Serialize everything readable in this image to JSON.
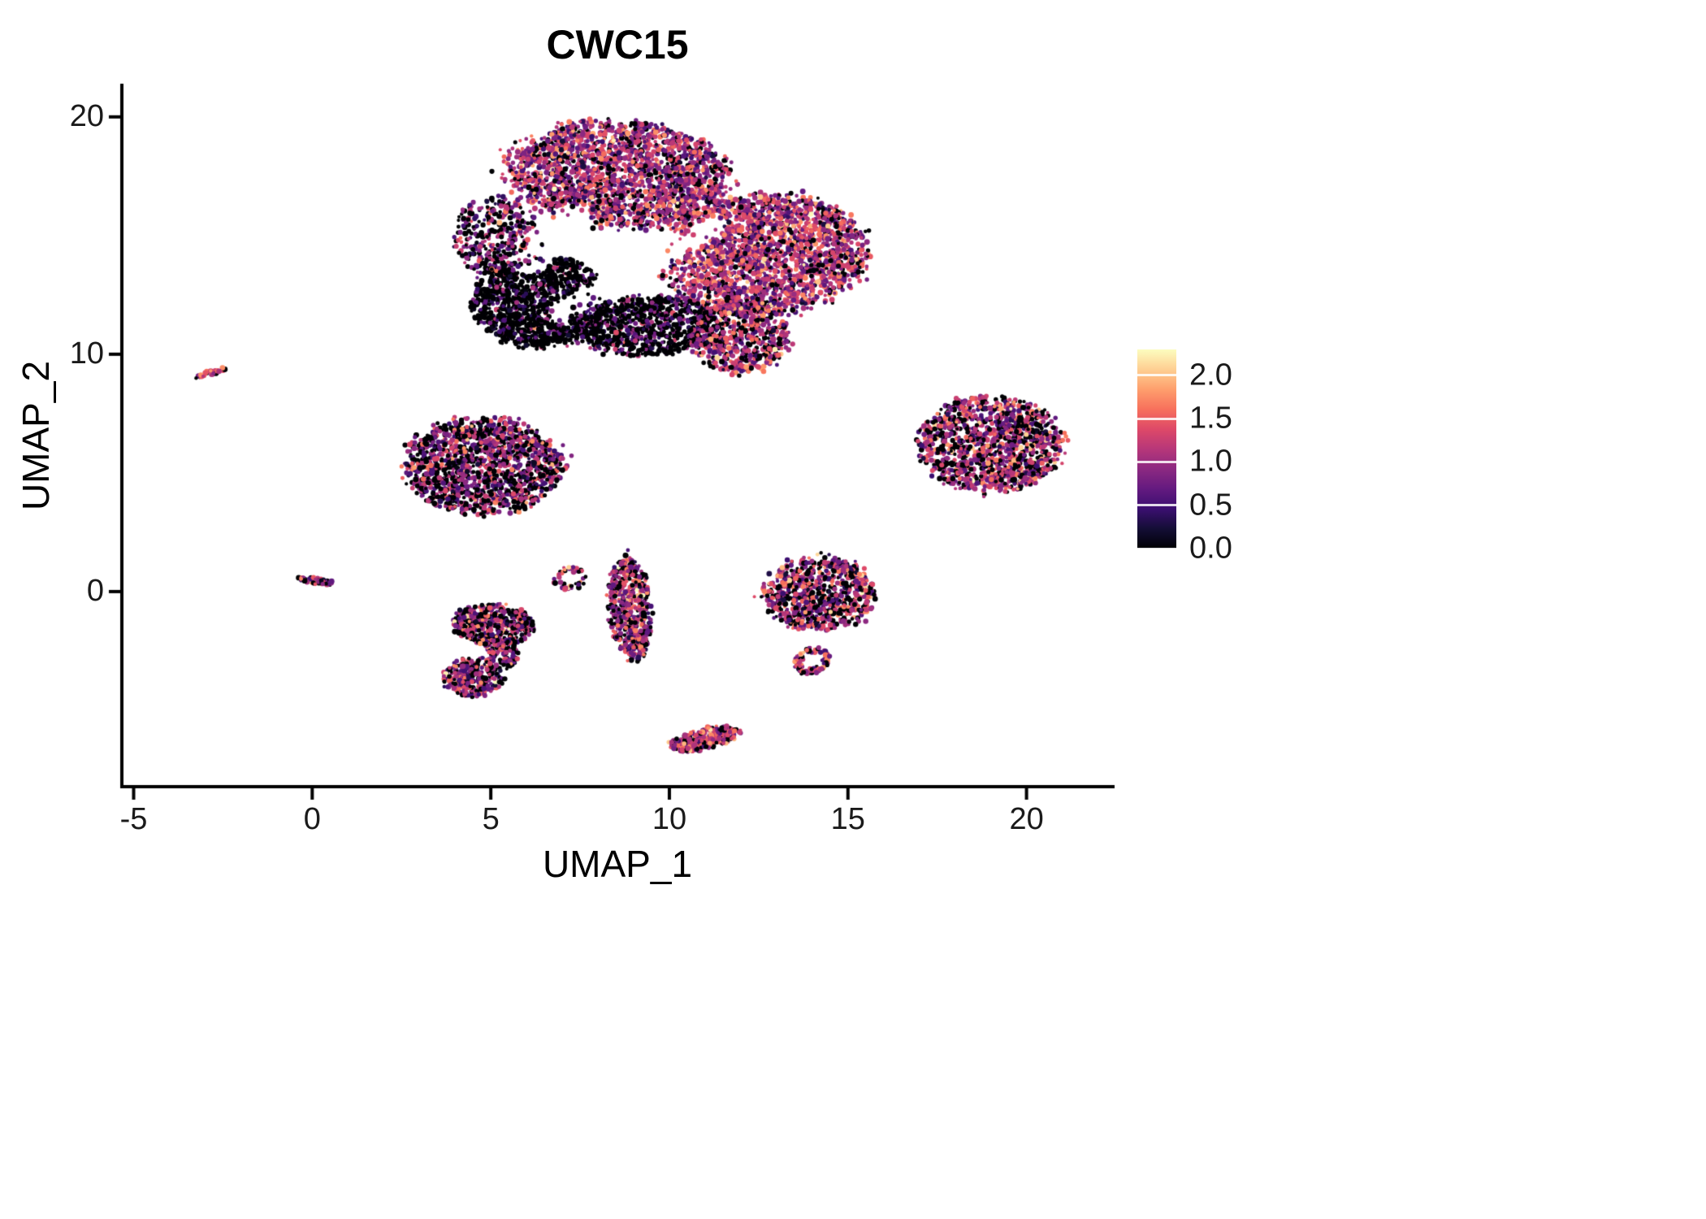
{
  "title": "CWC15",
  "chart_data": {
    "type": "scatter",
    "title": "CWC15",
    "xlabel": "UMAP_1",
    "ylabel": "UMAP_2",
    "xlim": [
      -5.33,
      22.42
    ],
    "ylim": [
      -8.22,
      21.33
    ],
    "grid": false,
    "legend_position": "right",
    "x_ticks": [
      {
        "v": -5,
        "label": "-5"
      },
      {
        "v": 0,
        "label": "0"
      },
      {
        "v": 5,
        "label": "5"
      },
      {
        "v": 10,
        "label": "10"
      },
      {
        "v": 15,
        "label": "15"
      },
      {
        "v": 20,
        "label": "20"
      }
    ],
    "y_ticks": [
      {
        "v": 0,
        "label": "0"
      },
      {
        "v": 10,
        "label": "10"
      },
      {
        "v": 20,
        "label": "20"
      }
    ],
    "color_scale": {
      "name": "magma",
      "min": 0,
      "max": 2.3,
      "ticks": [
        {
          "v": 2.0,
          "label": "2.0"
        },
        {
          "v": 1.5,
          "label": "1.5"
        },
        {
          "v": 1.0,
          "label": "1.0"
        },
        {
          "v": 0.5,
          "label": "0.5"
        },
        {
          "v": 0.0,
          "label": "0.0"
        }
      ],
      "anchors": [
        [
          0.0,
          "#000004"
        ],
        [
          0.1,
          "#140e36"
        ],
        [
          0.2,
          "#3b0f70"
        ],
        [
          0.3,
          "#641a80"
        ],
        [
          0.4,
          "#8c2981"
        ],
        [
          0.5,
          "#b73779"
        ],
        [
          0.6,
          "#de4968"
        ],
        [
          0.7,
          "#f7705c"
        ],
        [
          0.8,
          "#fe9f6d"
        ],
        [
          0.9,
          "#fecf92"
        ],
        [
          1.0,
          "#fcfdbf"
        ]
      ]
    },
    "gaps": [
      {
        "x1": 7.0,
        "y1": 11.8,
        "x2": 11.2,
        "y2": 15.4,
        "w": 0.42
      },
      {
        "x1": 6.1,
        "y1": 13.8,
        "x2": 7.3,
        "y2": 15.9,
        "w": 0.5
      }
    ],
    "clusters": [
      {
        "name": "main-upper",
        "cx": 8.6,
        "cy": 17.6,
        "rx": 3.1,
        "ry": 2.25,
        "rot": -8,
        "n": 2200,
        "zero": 0.17,
        "mean": 1.05,
        "sd": 0.42,
        "gap": true
      },
      {
        "name": "main-right",
        "cx": 12.7,
        "cy": 14.2,
        "rx": 2.9,
        "ry": 2.5,
        "rot": 15,
        "n": 2200,
        "zero": 0.14,
        "mean": 1.1,
        "sd": 0.42,
        "gap": true
      },
      {
        "name": "main-left-edge",
        "cx": 5.2,
        "cy": 14.9,
        "rx": 1.25,
        "ry": 1.7,
        "rot": 10,
        "n": 400,
        "zero": 0.35,
        "mean": 0.9,
        "sd": 0.4,
        "gap": true
      },
      {
        "name": "main-dark-left",
        "cx": 6.4,
        "cy": 12.2,
        "rx": 1.9,
        "ry": 1.9,
        "rot": 0,
        "n": 1300,
        "zero": 0.72,
        "mean": 0.6,
        "sd": 0.35,
        "gap": true
      },
      {
        "name": "main-dark-bottom",
        "cx": 9.4,
        "cy": 11.2,
        "rx": 2.0,
        "ry": 1.25,
        "rot": 5,
        "n": 800,
        "zero": 0.66,
        "mean": 0.65,
        "sd": 0.35,
        "gap": true
      },
      {
        "name": "main-lower-right",
        "cx": 12.0,
        "cy": 10.7,
        "rx": 1.4,
        "ry": 1.5,
        "rot": 0,
        "n": 650,
        "zero": 0.22,
        "mean": 1.1,
        "sd": 0.42
      },
      {
        "name": "streak-upper-left",
        "cx": -2.85,
        "cy": 9.2,
        "rx": 0.45,
        "ry": 0.12,
        "rot": 25,
        "n": 28,
        "zero": 0.1,
        "mean": 1.4,
        "sd": 0.3
      },
      {
        "name": "mid-left-blob",
        "cx": 4.8,
        "cy": 5.3,
        "rx": 2.2,
        "ry": 2.05,
        "rot": -10,
        "n": 1500,
        "zero": 0.38,
        "mean": 0.95,
        "sd": 0.42
      },
      {
        "name": "right-blob",
        "cx": 19.0,
        "cy": 6.2,
        "rx": 2.0,
        "ry": 2.05,
        "rot": 20,
        "n": 1300,
        "zero": 0.28,
        "mean": 1.1,
        "sd": 0.45
      },
      {
        "name": "tiny-left-streak",
        "cx": 0.1,
        "cy": 0.45,
        "rx": 0.5,
        "ry": 0.13,
        "rot": -12,
        "n": 55,
        "zero": 0.25,
        "mean": 1.0,
        "sd": 0.4
      },
      {
        "name": "small-arc",
        "cx": 7.2,
        "cy": 0.55,
        "rx": 0.45,
        "ry": 0.5,
        "rot": 0,
        "n": 45,
        "zero": 0.2,
        "mean": 1.2,
        "sd": 0.4,
        "ring": true
      },
      {
        "name": "vertical-blob",
        "cx": 8.9,
        "cy": -0.7,
        "rx": 0.62,
        "ry": 2.2,
        "rot": 3,
        "n": 550,
        "zero": 0.25,
        "mean": 1.1,
        "sd": 0.45
      },
      {
        "name": "lower-left-a",
        "cx": 5.1,
        "cy": -1.4,
        "rx": 1.15,
        "ry": 0.85,
        "rot": -5,
        "n": 450,
        "zero": 0.35,
        "mean": 1.0,
        "sd": 0.45
      },
      {
        "name": "lower-left-b",
        "cx": 4.5,
        "cy": -3.6,
        "rx": 0.85,
        "ry": 0.8,
        "rot": 30,
        "n": 300,
        "zero": 0.3,
        "mean": 1.05,
        "sd": 0.45
      },
      {
        "name": "lower-left-bridge",
        "cx": 5.3,
        "cy": -2.6,
        "rx": 0.45,
        "ry": 0.7,
        "rot": 15,
        "n": 100,
        "zero": 0.35,
        "mean": 1.0,
        "sd": 0.4
      },
      {
        "name": "right-mid-blob",
        "cx": 14.2,
        "cy": -0.1,
        "rx": 1.6,
        "ry": 1.55,
        "rot": 0,
        "n": 800,
        "zero": 0.3,
        "mean": 1.1,
        "sd": 0.45
      },
      {
        "name": "right-mid-tail",
        "cx": 14.0,
        "cy": -2.9,
        "rx": 0.45,
        "ry": 0.6,
        "rot": -30,
        "n": 110,
        "zero": 0.2,
        "mean": 1.2,
        "sd": 0.4,
        "ring": true
      },
      {
        "name": "bottom-streak",
        "cx": 11.0,
        "cy": -6.2,
        "rx": 1.05,
        "ry": 0.42,
        "rot": 20,
        "n": 300,
        "zero": 0.2,
        "mean": 1.25,
        "sd": 0.4
      }
    ]
  }
}
